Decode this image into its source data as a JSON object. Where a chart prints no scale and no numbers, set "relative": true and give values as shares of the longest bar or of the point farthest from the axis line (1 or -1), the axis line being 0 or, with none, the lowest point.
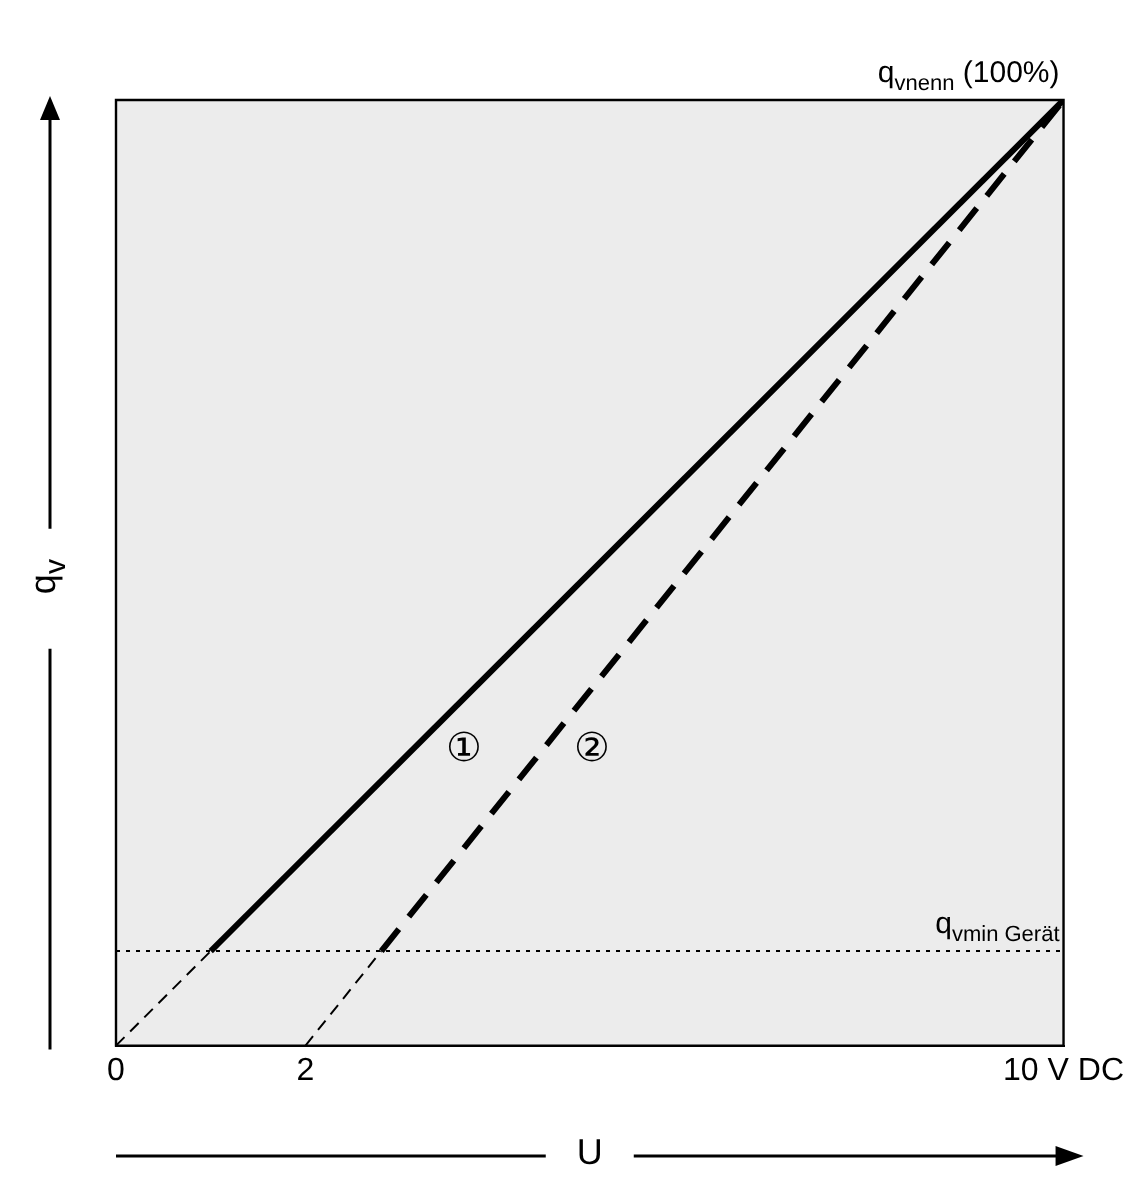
{
  "chart_data": {
    "type": "line",
    "relative": true,
    "xlabel": "U",
    "ylabel": "q$_{v}$",
    "xlim": [
      0,
      10
    ],
    "xticks": [
      0,
      2,
      {
        "value": 10,
        "label": "10 V DC"
      }
    ],
    "tick_labels": "x",
    "grid": false,
    "legend": false,
    "marker": "none",
    "series": [
      {
        "color": "#000000",
        "line_style": "dashed",
        "x": [
          0,
          1
        ],
        "values": [
          0,
          0.1
        ]
      },
      {
        "name": "①",
        "color": "#000000",
        "line_style": "solid",
        "x": [
          1,
          10
        ],
        "values": [
          0.1,
          1
        ]
      },
      {
        "color": "#000000",
        "line_style": "dashed",
        "x": [
          2,
          2.8
        ],
        "values": [
          0,
          0.1
        ]
      },
      {
        "name": "②",
        "color": "#000000",
        "line_style": "dashed",
        "x": [
          2.8,
          10
        ],
        "values": [
          0.1,
          1
        ]
      }
    ],
    "ref_lines": [
      {
        "axis": "y",
        "value": 1,
        "label": "q$_{vnenn}$ (100%)",
        "line_style": "dotted",
        "color": "#000000"
      },
      {
        "axis": "y",
        "value": 0.1,
        "label": "q$_{vmin Gerät}$",
        "line_style": "dotted",
        "color": "#000000"
      }
    ]
  }
}
